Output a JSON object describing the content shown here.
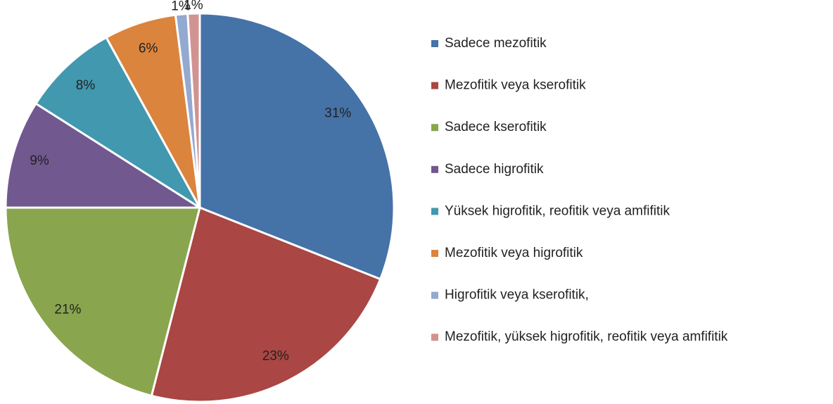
{
  "chart_data": {
    "type": "pie",
    "categories": [
      "Sadece mezofitik",
      "Mezofitik veya kserofitik",
      "Sadece kserofitik",
      "Sadece higrofitik",
      "Yüksek higrofitik, reofitik veya amfifitik",
      "Mezofitik veya higrofitik",
      "Higrofitik veya kserofitik,",
      "Mezofitik, yüksek higrofitik, reofitik veya amfifitik"
    ],
    "values": [
      31,
      23,
      21,
      9,
      8,
      6,
      1,
      1
    ],
    "value_labels": [
      "31%",
      "23%",
      "21%",
      "9%",
      "8%",
      "6%",
      "1%",
      "1%"
    ],
    "colors": [
      "#4572a7",
      "#aa4643",
      "#89a54e",
      "#71588f",
      "#4198af",
      "#db843d",
      "#93a9cf",
      "#d19392"
    ],
    "legend": "right"
  }
}
